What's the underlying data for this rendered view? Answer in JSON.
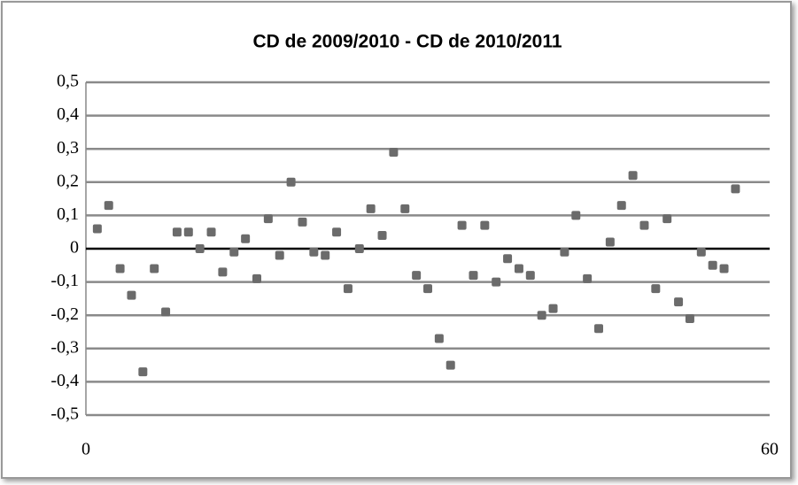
{
  "chart_data": {
    "type": "scatter",
    "title": "CD de 2009/2010 - CD de 2010/2011",
    "x": [
      1,
      2,
      3,
      4,
      5,
      6,
      7,
      8,
      9,
      10,
      11,
      12,
      13,
      14,
      15,
      16,
      17,
      18,
      19,
      20,
      21,
      22,
      23,
      24,
      25,
      26,
      27,
      28,
      29,
      30,
      31,
      32,
      33,
      34,
      35,
      36,
      37,
      38,
      39,
      40,
      41,
      42,
      43,
      44,
      45,
      46,
      47,
      48,
      49,
      50,
      51,
      52,
      53,
      54,
      55,
      56,
      57
    ],
    "values": [
      0.06,
      0.13,
      -0.06,
      -0.14,
      -0.37,
      -0.06,
      -0.19,
      0.05,
      0.05,
      0.0,
      0.05,
      -0.07,
      -0.01,
      0.03,
      -0.09,
      0.09,
      -0.02,
      0.2,
      0.08,
      -0.01,
      -0.02,
      0.05,
      -0.12,
      0.0,
      0.12,
      0.04,
      0.29,
      0.12,
      -0.08,
      -0.12,
      -0.27,
      -0.35,
      0.07,
      -0.08,
      0.07,
      -0.1,
      -0.03,
      -0.06,
      -0.08,
      -0.2,
      -0.18,
      -0.01,
      0.1,
      -0.09,
      -0.24,
      0.02,
      0.13,
      0.22,
      0.07,
      -0.12,
      0.09,
      -0.16,
      -0.21,
      -0.01,
      -0.05,
      -0.06,
      0.18
    ],
    "color": "#6b6b6b",
    "xlim": [
      0,
      60
    ],
    "xticks": [
      0,
      60
    ],
    "ylim": [
      -0.5,
      0.5
    ],
    "yticks": [
      {
        "value": -0.5,
        "label": "-0,5"
      },
      {
        "value": -0.4,
        "label": "-0,4"
      },
      {
        "value": -0.3,
        "label": "-0,3"
      },
      {
        "value": -0.2,
        "label": "-0,2"
      },
      {
        "value": -0.1,
        "label": "-0,1"
      },
      0,
      {
        "value": 0.1,
        "label": "0,1"
      },
      {
        "value": 0.2,
        "label": "0,2"
      },
      {
        "value": 0.3,
        "label": "0,3"
      },
      {
        "value": 0.4,
        "label": "0,4"
      },
      {
        "value": 0.5,
        "label": "0,5"
      }
    ],
    "grid": true
  }
}
